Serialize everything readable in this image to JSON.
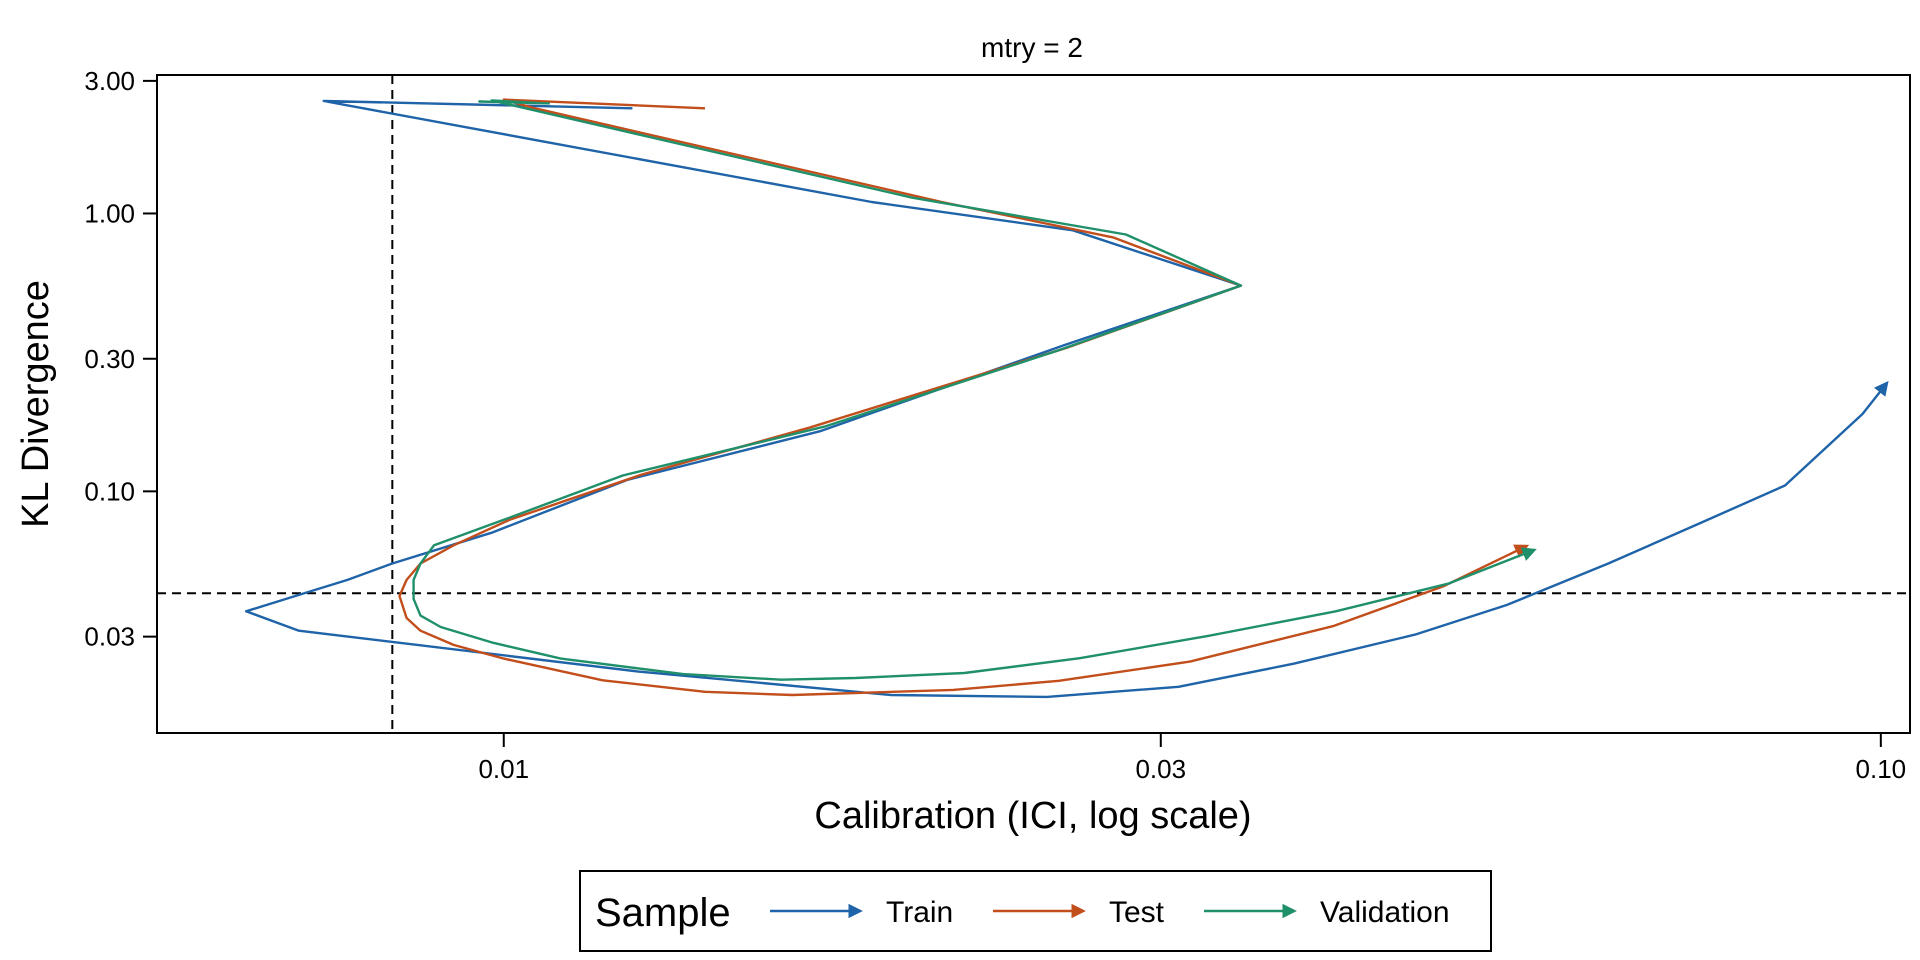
{
  "chart_data": {
    "type": "line",
    "title": "mtry = 2",
    "xlabel": "Calibration (ICI, log scale)",
    "ylabel": "KL Divergence",
    "x_scale": "log",
    "y_scale": "log",
    "xlim": [
      0.0056,
      0.105
    ],
    "ylim": [
      0.0135,
      3.15
    ],
    "x_ticks": [
      {
        "value": 0.01,
        "label": "0.01"
      },
      {
        "value": 0.03,
        "label": "0.03"
      },
      {
        "value": 0.1,
        "label": "0.10"
      }
    ],
    "y_ticks": [
      {
        "value": 0.03,
        "label": "0.03"
      },
      {
        "value": 0.1,
        "label": "0.10"
      },
      {
        "value": 0.3,
        "label": "0.30"
      },
      {
        "value": 1.0,
        "label": "1.00"
      },
      {
        "value": 3.0,
        "label": "3.00"
      }
    ],
    "reference_lines": {
      "vline_x": 0.0083,
      "hline_y": 0.043,
      "style": "dashed"
    },
    "grid": false,
    "legend": {
      "title": "Sample",
      "position": "bottom"
    },
    "series": [
      {
        "name": "Train",
        "color": "#1f63a8",
        "points": [
          [
            0.0124,
            2.39
          ],
          [
            0.0074,
            2.54
          ],
          [
            0.0185,
            1.1
          ],
          [
            0.0259,
            0.87
          ],
          [
            0.0343,
            0.55
          ],
          [
            0.0255,
            0.335
          ],
          [
            0.017,
            0.165
          ],
          [
            0.0123,
            0.11
          ],
          [
            0.0098,
            0.071
          ],
          [
            0.0083,
            0.055
          ],
          [
            0.0077,
            0.048
          ],
          [
            0.007,
            0.0415
          ],
          [
            0.0065,
            0.037
          ],
          [
            0.0071,
            0.0315
          ],
          [
            0.0125,
            0.0225
          ],
          [
            0.0191,
            0.0185
          ],
          [
            0.0248,
            0.0182
          ],
          [
            0.0309,
            0.0198
          ],
          [
            0.0375,
            0.024
          ],
          [
            0.0459,
            0.0305
          ],
          [
            0.0535,
            0.039
          ],
          [
            0.0634,
            0.055
          ],
          [
            0.074,
            0.077
          ],
          [
            0.0852,
            0.105
          ],
          [
            0.097,
            0.19
          ],
          [
            0.101,
            0.245
          ]
        ]
      },
      {
        "name": "Test",
        "color": "#c24e1c",
        "points": [
          [
            0.014,
            2.39
          ],
          [
            0.01,
            2.57
          ],
          [
            0.0105,
            2.4
          ],
          [
            0.0208,
            1.1
          ],
          [
            0.0277,
            0.82
          ],
          [
            0.0343,
            0.55
          ],
          [
            0.0257,
            0.33
          ],
          [
            0.0167,
            0.17
          ],
          [
            0.0126,
            0.115
          ],
          [
            0.0101,
            0.079
          ],
          [
            0.0092,
            0.064
          ],
          [
            0.0087,
            0.055
          ],
          [
            0.0085,
            0.048
          ],
          [
            0.0084,
            0.042
          ],
          [
            0.0085,
            0.035
          ],
          [
            0.0087,
            0.0315
          ],
          [
            0.0092,
            0.028
          ],
          [
            0.01,
            0.025
          ],
          [
            0.0118,
            0.0209
          ],
          [
            0.014,
            0.019
          ],
          [
            0.0162,
            0.0185
          ],
          [
            0.0212,
            0.0193
          ],
          [
            0.0253,
            0.0208
          ],
          [
            0.0315,
            0.0244
          ],
          [
            0.04,
            0.0327
          ],
          [
            0.0481,
            0.0455
          ],
          [
            0.0553,
            0.0635
          ]
        ]
      },
      {
        "name": "Validation",
        "color": "#20906b",
        "points": [
          [
            0.0108,
            2.49
          ],
          [
            0.0096,
            2.53
          ],
          [
            0.0106,
            2.5
          ],
          [
            0.0098,
            2.55
          ],
          [
            0.0198,
            1.14
          ],
          [
            0.0283,
            0.84
          ],
          [
            0.0343,
            0.55
          ],
          [
            0.0252,
            0.32
          ],
          [
            0.0171,
            0.171
          ],
          [
            0.0122,
            0.114
          ],
          [
            0.01,
            0.079
          ],
          [
            0.0089,
            0.064
          ],
          [
            0.0087,
            0.055
          ],
          [
            0.0086,
            0.048
          ],
          [
            0.0086,
            0.041
          ],
          [
            0.0087,
            0.0357
          ],
          [
            0.009,
            0.0325
          ],
          [
            0.0098,
            0.0286
          ],
          [
            0.011,
            0.025
          ],
          [
            0.0135,
            0.022
          ],
          [
            0.0159,
            0.021
          ],
          [
            0.018,
            0.0213
          ],
          [
            0.0216,
            0.0222
          ],
          [
            0.0262,
            0.0251
          ],
          [
            0.0325,
            0.0302
          ],
          [
            0.0402,
            0.037
          ],
          [
            0.0485,
            0.0465
          ],
          [
            0.056,
            0.0615
          ]
        ]
      }
    ]
  }
}
